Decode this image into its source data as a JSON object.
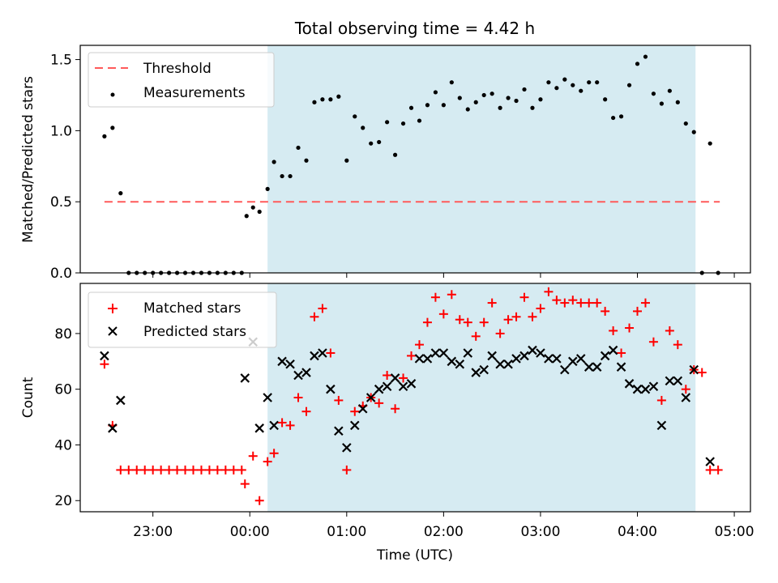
{
  "figure": {
    "title": "Total observing time = 4.42 h",
    "xlabel": "Time (UTC)"
  },
  "chart_data": [
    {
      "type": "scatter",
      "ylabel": "Matched/Predicted stars",
      "ylim": [
        0,
        1.6
      ],
      "xlim": [
        "22:15",
        "05:10"
      ],
      "yticks": [
        0.0,
        0.5,
        1.0,
        1.5
      ],
      "shaded_interval": [
        "00:11",
        "04:36"
      ],
      "shaded_color": "#add8e6",
      "threshold": {
        "name": "Threshold",
        "value": 0.5,
        "x_range": [
          "22:30",
          "04:51"
        ],
        "color": "#ff5a5a",
        "style": "dashed"
      },
      "legend_position": "upper left",
      "series": [
        {
          "name": "Measurements",
          "color": "#000000",
          "marker": "dot",
          "x": [
            "22:30",
            "22:35",
            "22:40",
            "22:45",
            "22:50",
            "22:55",
            "23:00",
            "23:05",
            "23:10",
            "23:15",
            "23:20",
            "23:25",
            "23:30",
            "23:35",
            "23:40",
            "23:45",
            "23:50",
            "23:55",
            "23:58",
            "00:02",
            "00:06",
            "00:11",
            "00:15",
            "00:20",
            "00:25",
            "00:30",
            "00:35",
            "00:40",
            "00:45",
            "00:50",
            "00:55",
            "01:00",
            "01:05",
            "01:10",
            "01:15",
            "01:20",
            "01:25",
            "01:30",
            "01:35",
            "01:40",
            "01:45",
            "01:50",
            "01:55",
            "02:00",
            "02:05",
            "02:10",
            "02:15",
            "02:20",
            "02:25",
            "02:30",
            "02:35",
            "02:40",
            "02:45",
            "02:50",
            "02:55",
            "03:00",
            "03:05",
            "03:10",
            "03:15",
            "03:20",
            "03:25",
            "03:30",
            "03:35",
            "03:40",
            "03:45",
            "03:50",
            "03:55",
            "04:00",
            "04:05",
            "04:10",
            "04:15",
            "04:20",
            "04:25",
            "04:30",
            "04:35",
            "04:40",
            "04:45",
            "04:50"
          ],
          "y": [
            0.96,
            1.02,
            0.56,
            0.0,
            0.0,
            0.0,
            0.0,
            0.0,
            0.0,
            0.0,
            0.0,
            0.0,
            0.0,
            0.0,
            0.0,
            0.0,
            0.0,
            0.0,
            0.4,
            0.46,
            0.43,
            0.59,
            0.78,
            0.68,
            0.68,
            0.88,
            0.79,
            1.2,
            1.22,
            1.22,
            1.24,
            0.79,
            1.1,
            1.02,
            0.91,
            0.92,
            1.06,
            0.83,
            1.05,
            1.16,
            1.07,
            1.18,
            1.27,
            1.18,
            1.34,
            1.23,
            1.15,
            1.2,
            1.25,
            1.26,
            1.16,
            1.23,
            1.21,
            1.29,
            1.16,
            1.22,
            1.34,
            1.3,
            1.36,
            1.32,
            1.28,
            1.34,
            1.34,
            1.22,
            1.09,
            1.1,
            1.32,
            1.47,
            1.52,
            1.26,
            1.19,
            1.28,
            1.2,
            1.05,
            0.99,
            0.0,
            0.91,
            0.0
          ]
        }
      ]
    },
    {
      "type": "scatter",
      "ylabel": "Count",
      "ylim": [
        16,
        98
      ],
      "xlim": [
        "22:15",
        "05:10"
      ],
      "yticks": [
        20,
        40,
        60,
        80
      ],
      "xticks": [
        "23:00",
        "00:00",
        "01:00",
        "02:00",
        "03:00",
        "04:00",
        "05:00"
      ],
      "shaded_interval": [
        "00:11",
        "04:36"
      ],
      "shaded_color": "#add8e6",
      "legend_position": "upper left",
      "series": [
        {
          "name": "Matched stars",
          "color": "#ff0000",
          "marker": "plus",
          "x": [
            "22:30",
            "22:35",
            "22:40",
            "22:45",
            "22:50",
            "22:55",
            "23:00",
            "23:05",
            "23:10",
            "23:15",
            "23:20",
            "23:25",
            "23:30",
            "23:35",
            "23:40",
            "23:45",
            "23:50",
            "23:55",
            "23:57",
            "00:02",
            "00:06",
            "00:11",
            "00:15",
            "00:20",
            "00:25",
            "00:30",
            "00:35",
            "00:40",
            "00:45",
            "00:50",
            "00:55",
            "01:00",
            "01:05",
            "01:10",
            "01:15",
            "01:20",
            "01:25",
            "01:30",
            "01:35",
            "01:40",
            "01:45",
            "01:50",
            "01:55",
            "02:00",
            "02:05",
            "02:10",
            "02:15",
            "02:20",
            "02:25",
            "02:30",
            "02:35",
            "02:40",
            "02:45",
            "02:50",
            "02:55",
            "03:00",
            "03:05",
            "03:10",
            "03:15",
            "03:20",
            "03:25",
            "03:30",
            "03:35",
            "03:40",
            "03:45",
            "03:50",
            "03:55",
            "04:00",
            "04:05",
            "04:10",
            "04:15",
            "04:20",
            "04:25",
            "04:30",
            "04:35",
            "04:40",
            "04:45",
            "04:50"
          ],
          "y": [
            69,
            47,
            31,
            31,
            31,
            31,
            31,
            31,
            31,
            31,
            31,
            31,
            31,
            31,
            31,
            31,
            31,
            31,
            26,
            36,
            20,
            34,
            37,
            48,
            47,
            57,
            52,
            86,
            89,
            73,
            56,
            31,
            52,
            54,
            57,
            55,
            65,
            53,
            64,
            72,
            76,
            84,
            93,
            87,
            94,
            85,
            84,
            79,
            84,
            91,
            80,
            85,
            86,
            93,
            86,
            89,
            95,
            92,
            91,
            92,
            91,
            91,
            91,
            88,
            81,
            73,
            82,
            88,
            91,
            77,
            56,
            81,
            76,
            60,
            67,
            66,
            31,
            31
          ]
        },
        {
          "name": "Predicted stars",
          "color": "#000000",
          "marker": "x",
          "x": [
            "22:30",
            "22:35",
            "22:40",
            "23:57",
            "00:02",
            "00:06",
            "00:11",
            "00:15",
            "00:20",
            "00:25",
            "00:30",
            "00:35",
            "00:40",
            "00:45",
            "00:50",
            "00:55",
            "01:00",
            "01:05",
            "01:10",
            "01:15",
            "01:20",
            "01:25",
            "01:30",
            "01:35",
            "01:40",
            "01:45",
            "01:50",
            "01:55",
            "02:00",
            "02:05",
            "02:10",
            "02:15",
            "02:20",
            "02:25",
            "02:30",
            "02:35",
            "02:40",
            "02:45",
            "02:50",
            "02:55",
            "03:00",
            "03:05",
            "03:10",
            "03:15",
            "03:20",
            "03:25",
            "03:30",
            "03:35",
            "03:40",
            "03:45",
            "03:50",
            "03:55",
            "04:00",
            "04:05",
            "04:10",
            "04:15",
            "04:20",
            "04:25",
            "04:30",
            "04:35",
            "04:45"
          ],
          "y": [
            72,
            46,
            56,
            64,
            77,
            46,
            57,
            47,
            70,
            69,
            65,
            66,
            72,
            73,
            60,
            45,
            39,
            47,
            53,
            57,
            60,
            61,
            64,
            61,
            62,
            71,
            71,
            73,
            73,
            70,
            69,
            73,
            66,
            67,
            72,
            69,
            69,
            71,
            72,
            74,
            73,
            71,
            71,
            67,
            70,
            71,
            68,
            68,
            72,
            74,
            68,
            62,
            60,
            60,
            61,
            47,
            63,
            63,
            57,
            67,
            34
          ]
        }
      ]
    }
  ]
}
